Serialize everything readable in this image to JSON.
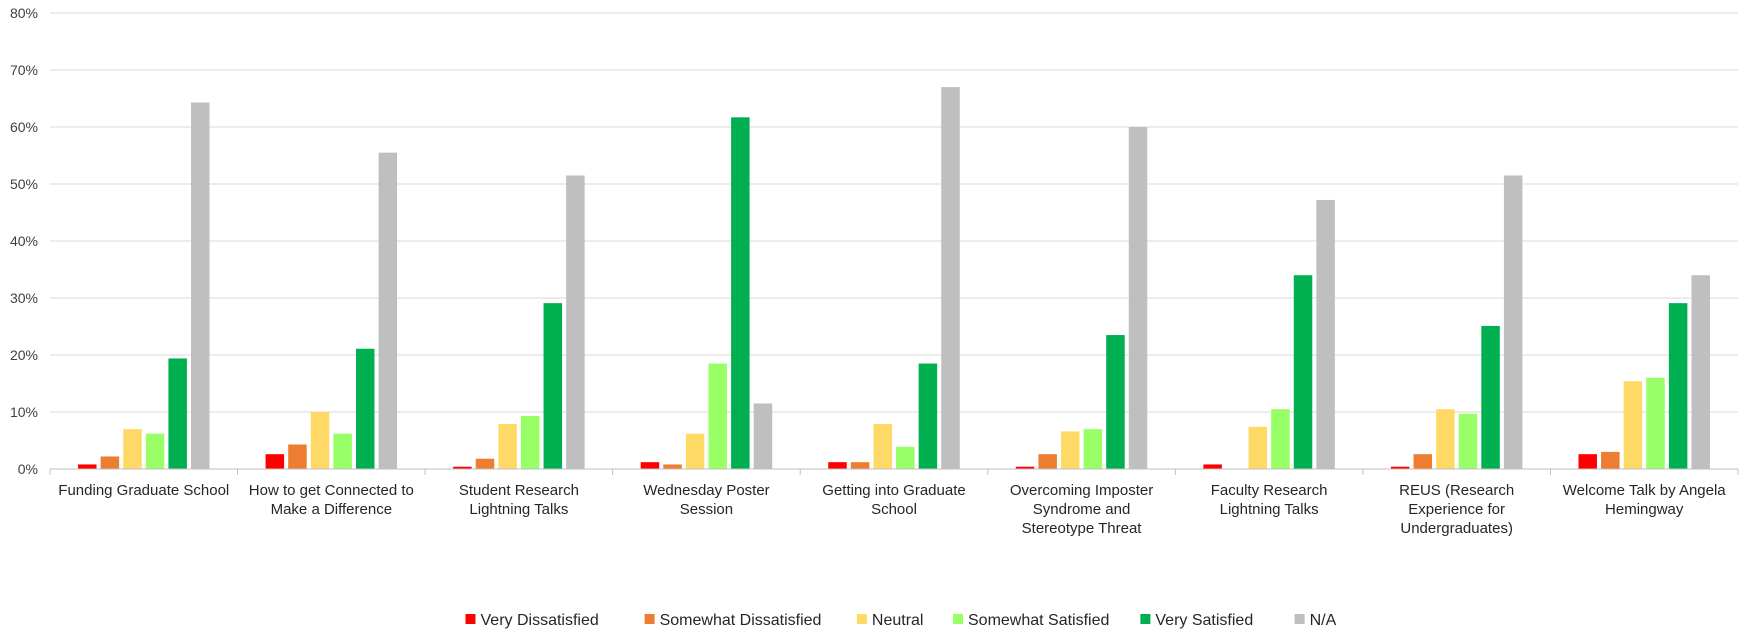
{
  "chart_data": {
    "type": "bar",
    "title": "",
    "xlabel": "",
    "ylabel": "",
    "ylim": [
      0,
      80
    ],
    "yticks": [
      "0%",
      "10%",
      "20%",
      "30%",
      "40%",
      "50%",
      "60%",
      "70%",
      "80%"
    ],
    "grid": "horizontal",
    "legend_position": "bottom",
    "categories": [
      [
        "Funding Graduate School"
      ],
      [
        "How to get Connected to",
        "Make a Difference"
      ],
      [
        "Student Research",
        "Lightning Talks"
      ],
      [
        "Wednesday Poster",
        "Session"
      ],
      [
        "Getting into Graduate",
        "School"
      ],
      [
        "Overcoming Imposter",
        "Syndrome and",
        "Stereotype Threat"
      ],
      [
        "Faculty Research",
        "Lightning Talks"
      ],
      [
        "REUS (Research",
        "Experience for",
        "Undergraduates)"
      ],
      [
        "Welcome Talk by Angela",
        "Hemingway"
      ]
    ],
    "series": [
      {
        "name": "Very Dissatisfied",
        "color": "#ff0000",
        "values": [
          0.8,
          2.6,
          0.4,
          1.2,
          1.2,
          0.4,
          0.8,
          0.4,
          2.6
        ]
      },
      {
        "name": "Somewhat Dissatisfied",
        "color": "#ed7d31",
        "values": [
          2.2,
          4.3,
          1.8,
          0.8,
          1.2,
          2.6,
          0,
          2.6,
          3.0
        ]
      },
      {
        "name": "Neutral",
        "color": "#ffd966",
        "values": [
          7.0,
          10.0,
          7.9,
          6.2,
          7.9,
          6.6,
          7.4,
          10.5,
          15.4
        ]
      },
      {
        "name": "Somewhat Satisfied",
        "color": "#99ff66",
        "values": [
          6.2,
          6.2,
          9.3,
          18.5,
          3.9,
          7.0,
          10.5,
          9.7,
          16.0
        ]
      },
      {
        "name": "Very Satisfied",
        "color": "#00b050",
        "values": [
          19.4,
          21.1,
          29.1,
          61.7,
          18.5,
          23.5,
          34.0,
          25.1,
          29.1
        ]
      },
      {
        "name": "N/A",
        "color": "#bfbfbf",
        "values": [
          64.3,
          55.5,
          51.5,
          11.5,
          67.0,
          60.0,
          47.2,
          51.5,
          34.0
        ]
      }
    ]
  }
}
